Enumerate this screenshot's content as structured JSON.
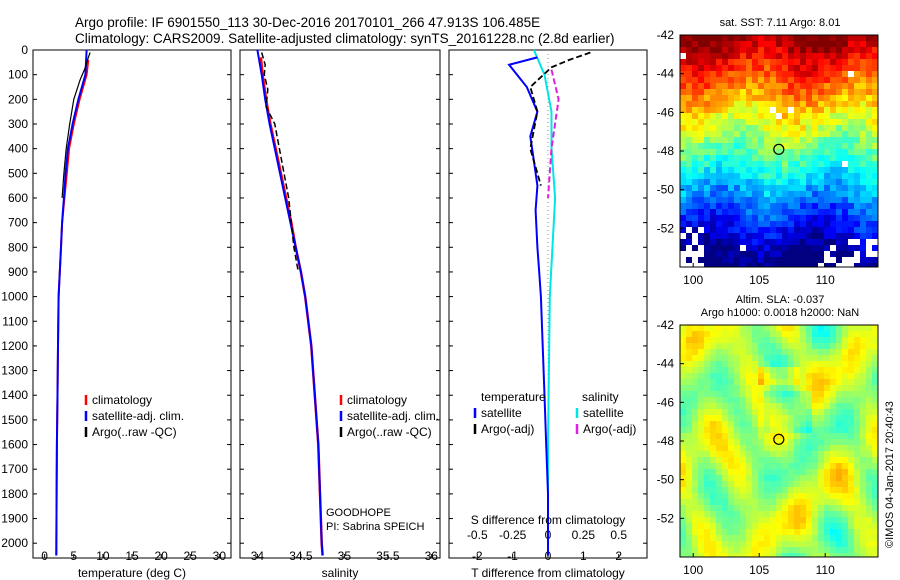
{
  "header": {
    "title_line1": "Argo profile: IF 6901550_113 30-Dec-2016 20170101_266 47.913S 106.485E",
    "title_line2": "Climatology: CARS2009. Satellite-adjusted climatology: synTS_20161228.nc (2.8d earlier)"
  },
  "depth_ticks": [
    "0",
    "100",
    "200",
    "300",
    "400",
    "500",
    "600",
    "700",
    "800",
    "900",
    "1000",
    "1100",
    "1200",
    "1300",
    "1400",
    "1500",
    "1600",
    "1700",
    "1800",
    "1900",
    "2000"
  ],
  "colors": {
    "climatology": "#ff0000",
    "satellite": "#0000ff",
    "argo": "#000000",
    "sat_salinity": "#00e5e5",
    "argo_salinity": "#e020e0"
  },
  "chart_data": [
    {
      "type": "line",
      "name": "temperature-profile",
      "xlabel": "temperature (deg C)",
      "xlim": [
        -2,
        32
      ],
      "ylim": [
        2060,
        0
      ],
      "x_ticks": [
        "0",
        "5",
        "10",
        "15",
        "20",
        "25",
        "30"
      ],
      "legend": [
        "climatology",
        "satellite-adj. clim.",
        "Argo(..raw -QC)"
      ],
      "series": [
        {
          "name": "climatology",
          "x": [
            7.5,
            7.2,
            6.0,
            5.0,
            4.2,
            3.8,
            3.4,
            3.0,
            2.8,
            2.6,
            2.4,
            2.3,
            2.2,
            2.1,
            2.05,
            2.0
          ],
          "y": [
            40,
            100,
            200,
            300,
            400,
            500,
            600,
            700,
            800,
            900,
            1000,
            1200,
            1400,
            1600,
            1800,
            2050
          ]
        },
        {
          "name": "satellite-adj. clim.",
          "x": [
            7.2,
            7.0,
            5.8,
            4.8,
            4.0,
            3.6,
            3.3,
            3.0,
            2.8,
            2.6,
            2.4,
            2.3,
            2.2,
            2.1,
            2.05,
            2.0
          ],
          "y": [
            0,
            100,
            200,
            300,
            400,
            500,
            600,
            700,
            800,
            900,
            1000,
            1200,
            1400,
            1600,
            1800,
            2050
          ]
        },
        {
          "name": "Argo(..raw -QC)",
          "x": [
            7.8,
            7.5,
            7.0,
            6.1,
            5.0,
            4.3,
            3.7,
            3.3,
            3.0
          ],
          "y": [
            10,
            30,
            70,
            120,
            200,
            300,
            400,
            500,
            600
          ]
        }
      ]
    },
    {
      "type": "line",
      "name": "salinity-profile",
      "xlabel": "salinity",
      "xlim": [
        33.8,
        36.1
      ],
      "ylim": [
        2060,
        0
      ],
      "x_ticks": [
        "34",
        "34.5",
        "35",
        "35.5",
        "36"
      ],
      "legend": [
        "climatology",
        "satellite-adj. clim.",
        "Argo(..raw -QC)"
      ],
      "annotation": [
        "GOODHOPE",
        "PI: Sabrina SPEICH"
      ],
      "series": [
        {
          "name": "climatology",
          "x": [
            34.04,
            34.06,
            34.1,
            34.15,
            34.21,
            34.27,
            34.33,
            34.39,
            34.44,
            34.5,
            34.55,
            34.62,
            34.66,
            34.7,
            34.72,
            34.74,
            34.75
          ],
          "y": [
            30,
            100,
            200,
            300,
            400,
            500,
            600,
            700,
            800,
            900,
            1000,
            1200,
            1400,
            1600,
            1800,
            2000,
            2050
          ]
        },
        {
          "name": "satellite-adj. clim.",
          "x": [
            34.0,
            34.05,
            34.09,
            34.14,
            34.2,
            34.26,
            34.32,
            34.38,
            34.44,
            34.5,
            34.55,
            34.62,
            34.66,
            34.7,
            34.72,
            34.74,
            34.75
          ],
          "y": [
            0,
            100,
            200,
            300,
            400,
            500,
            600,
            700,
            800,
            900,
            1000,
            1200,
            1400,
            1600,
            1800,
            2000,
            2050
          ]
        },
        {
          "name": "Argo(..raw -QC)",
          "x": [
            34.05,
            34.09,
            34.08,
            34.12,
            34.1,
            34.2,
            34.28,
            34.36,
            34.42,
            34.47
          ],
          "y": [
            10,
            60,
            100,
            160,
            230,
            300,
            450,
            600,
            800,
            900
          ]
        }
      ]
    },
    {
      "type": "line",
      "name": "difference-profile",
      "xlabel": "T difference from climatology",
      "top_label": "S difference from climatology",
      "xlim": [
        -2.8,
        2.8
      ],
      "ylim": [
        2060,
        0
      ],
      "x_ticks": [
        "-2",
        "-1",
        "0",
        "1",
        "2"
      ],
      "s_ticks": [
        "-0.5",
        "-0.25",
        "0",
        "0.25",
        "0.5"
      ],
      "legend_left_title": "temperature",
      "legend_right_title": "salinity",
      "legend": [
        "satellite",
        "Argo(-adj)",
        "satellite",
        "Argo(-adj)"
      ],
      "series": [
        {
          "name": "temperature satellite",
          "x": [
            -0.3,
            -1.1,
            -0.6,
            -0.3,
            -0.5,
            -0.4,
            -0.3,
            -0.35,
            -0.3,
            -0.25,
            -0.2,
            -0.15,
            -0.1,
            -0.05,
            0.0,
            0.0
          ],
          "y": [
            30,
            60,
            150,
            250,
            350,
            450,
            550,
            650,
            800,
            900,
            1000,
            1200,
            1400,
            1600,
            1800,
            2050
          ]
        },
        {
          "name": "temperature Argo(-adj)",
          "x": [
            1.2,
            0.6,
            0.1,
            -0.5,
            -0.3,
            -0.5,
            -0.2
          ],
          "y": [
            10,
            40,
            70,
            150,
            250,
            400,
            550
          ]
        },
        {
          "name": "salinity satellite",
          "x": [
            -0.4,
            -0.1,
            0.1,
            0.1,
            0.2,
            0.05,
            0.0,
            0.0
          ],
          "y": [
            0,
            100,
            250,
            400,
            600,
            1000,
            1600,
            2050
          ]
        },
        {
          "name": "salinity Argo(-adj)",
          "x": [
            0.1,
            0.3,
            0.1,
            0.0
          ],
          "y": [
            80,
            200,
            400,
            600
          ]
        }
      ]
    },
    {
      "type": "heatmap",
      "name": "sst-map",
      "title": "sat. SST: 7.11 Argo: 8.01",
      "xlim": [
        99,
        114
      ],
      "ylim": [
        -54,
        -42
      ],
      "x_ticks": [
        "100",
        "105",
        "110"
      ],
      "y_ticks": [
        "-42",
        "-44",
        "-46",
        "-48",
        "-50",
        "-52"
      ],
      "marker": {
        "lon": 106.485,
        "lat": -47.913
      }
    },
    {
      "type": "heatmap",
      "name": "sla-map",
      "title_line1": "Altim. SLA: -0.037",
      "title_line2": "Argo h1000: 0.0018 h2000: NaN",
      "xlim": [
        99,
        114
      ],
      "ylim": [
        -54,
        -42
      ],
      "x_ticks": [
        "100",
        "105",
        "110"
      ],
      "y_ticks": [
        "-42",
        "-44",
        "-46",
        "-48",
        "-50",
        "-52"
      ],
      "marker": {
        "lon": 106.485,
        "lat": -47.913
      }
    }
  ],
  "credit": "©IMOS 04-Jan-2017 20:40:43"
}
